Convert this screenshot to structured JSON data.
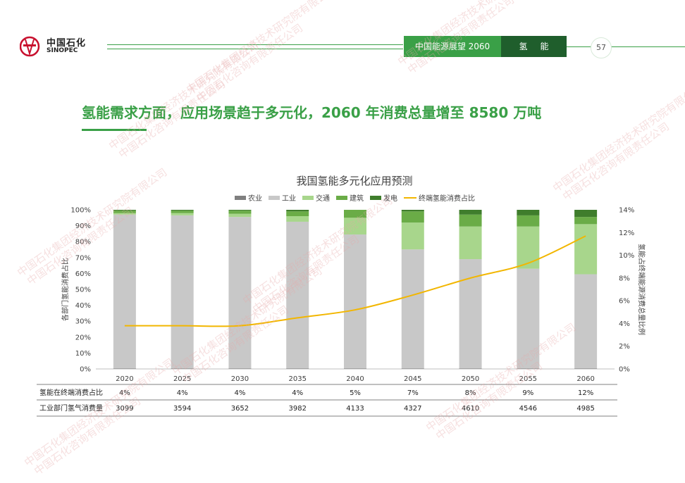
{
  "header": {
    "logo_cn": "中国石化",
    "logo_en": "SINOPEC",
    "book_title": "中国能源展望 2060",
    "chapter": "氢能",
    "page_number": "57"
  },
  "main_title": "氢能需求方面，应用场景趋于多元化，2060 年消费总量增至 8580 万吨",
  "colors": {
    "accent": "#3aa047",
    "dark_green": "#1f5e2c",
    "agriculture": "#7f7f7f",
    "industry": "#c8c8c8",
    "transport": "#a8d68c",
    "building": "#6aac47",
    "power": "#3f7d2c",
    "share_line": "#f2b600"
  },
  "chart_data": {
    "type": "bar",
    "stacked": true,
    "title": "我国氢能多元化应用预测",
    "categories": [
      "2020",
      "2025",
      "2030",
      "2035",
      "2040",
      "2045",
      "2050",
      "2055",
      "2060"
    ],
    "ylabel": "各部门氢能消费占比",
    "ylabel_right": "氢能占终端能源消费总量比例",
    "ylim": [
      0,
      100
    ],
    "ylim_right": [
      0,
      14
    ],
    "yticks": [
      "0%",
      "10%",
      "20%",
      "30%",
      "40%",
      "50%",
      "60%",
      "70%",
      "80%",
      "90%",
      "100%"
    ],
    "yticks_right": [
      "0%",
      "2%",
      "4%",
      "6%",
      "8%",
      "10%",
      "12%",
      "14%"
    ],
    "legend_position": "top",
    "series": [
      {
        "name": "农业",
        "color": "#7f7f7f",
        "values": [
          0.3,
          0.3,
          0.3,
          0.3,
          0.3,
          0.3,
          0.3,
          0.3,
          0.3
        ]
      },
      {
        "name": "工业",
        "color": "#c8c8c8",
        "values": [
          96.7,
          96.2,
          95.2,
          92.2,
          84.2,
          74.8,
          68.7,
          62.7,
          59.2
        ]
      },
      {
        "name": "交通",
        "color": "#a8d68c",
        "values": [
          1.0,
          1.5,
          2.0,
          3.5,
          10.5,
          16.9,
          20.5,
          26.5,
          31.5
        ]
      },
      {
        "name": "建筑",
        "color": "#6aac47",
        "values": [
          1.5,
          1.5,
          2.0,
          3.0,
          5.0,
          7.0,
          7.5,
          7.0,
          4.5
        ]
      },
      {
        "name": "发电",
        "color": "#3f7d2c",
        "values": [
          0.5,
          0.5,
          0.5,
          1.0,
          0.0,
          1.0,
          3.0,
          3.5,
          4.5
        ]
      }
    ],
    "line_series": {
      "name": "终端氢能消费占比",
      "color": "#f2b600",
      "axis": "right",
      "values": [
        3.8,
        3.8,
        3.8,
        4.5,
        5.2,
        6.5,
        8.0,
        9.3,
        11.7
      ]
    },
    "table": {
      "rows": [
        {
          "label": "氢能在终端消费占比",
          "values": [
            "4%",
            "4%",
            "4%",
            "4%",
            "5%",
            "7%",
            "8%",
            "9%",
            "12%"
          ]
        },
        {
          "label": "工业部门氢气消费量",
          "values": [
            "3099",
            "3594",
            "3652",
            "3982",
            "4133",
            "4327",
            "4610",
            "4546",
            "4985"
          ]
        }
      ]
    }
  },
  "watermark_text": [
    "中国石化集团经济技术研究院有限公司",
    "中国石化咨询有限责任公司"
  ]
}
